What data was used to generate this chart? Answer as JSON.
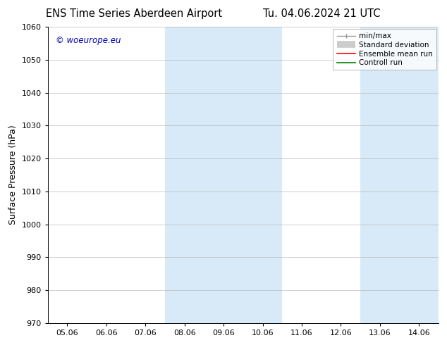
{
  "title_left": "ENS Time Series Aberdeen Airport",
  "title_right": "Tu. 04.06.2024 21 UTC",
  "ylabel": "Surface Pressure (hPa)",
  "ylim": [
    970,
    1060
  ],
  "yticks": [
    970,
    980,
    990,
    1000,
    1010,
    1020,
    1030,
    1040,
    1050,
    1060
  ],
  "xtick_labels": [
    "05.06",
    "06.06",
    "07.06",
    "08.06",
    "09.06",
    "10.06",
    "11.06",
    "12.06",
    "13.06",
    "14.06"
  ],
  "xtick_positions": [
    0,
    1,
    2,
    3,
    4,
    5,
    6,
    7,
    8,
    9
  ],
  "watermark": "© woeurope.eu",
  "watermark_color": "#0000bb",
  "shaded_band_color": "#d8eaf7",
  "shaded_regions": [
    {
      "xstart": 3,
      "xend": 5
    },
    {
      "xstart": 8,
      "xend": 9
    }
  ],
  "background_color": "#ffffff",
  "grid_color": "#aaaaaa",
  "tick_fontsize": 8,
  "label_fontsize": 9,
  "title_fontsize": 10.5
}
